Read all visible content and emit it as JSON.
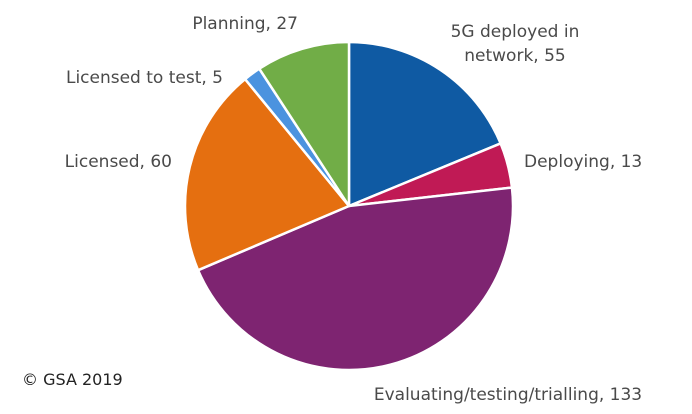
{
  "chart_data": {
    "type": "pie",
    "slices": [
      {
        "label": "5G deployed in network",
        "value": 55,
        "color": "#0f5aa3"
      },
      {
        "label": "Deploying",
        "value": 13,
        "color": "#c01a55"
      },
      {
        "label": "Evaluating/testing/trialling",
        "value": 133,
        "color": "#7e2471"
      },
      {
        "label": "Licensed",
        "value": 60,
        "color": "#e56f10"
      },
      {
        "label": "Licensed to test",
        "value": 5,
        "color": "#4b93df"
      },
      {
        "label": "Planning",
        "value": 27,
        "color": "#71ad47"
      }
    ],
    "data_labels": [
      {
        "lines": [
          "5G deployed in",
          "network, 55"
        ]
      },
      {
        "lines": [
          "Deploying, 13"
        ]
      },
      {
        "lines": [
          "Evaluating/testing/trialling, 133"
        ]
      },
      {
        "lines": [
          "Licensed, 60"
        ]
      },
      {
        "lines": [
          "Licensed to test, 5"
        ]
      },
      {
        "lines": [
          "Planning, 27"
        ]
      }
    ],
    "start_angle": "12 o'clock",
    "direction": "clockwise",
    "legend": "none"
  },
  "footer": {
    "copyright": "© GSA 2019"
  }
}
